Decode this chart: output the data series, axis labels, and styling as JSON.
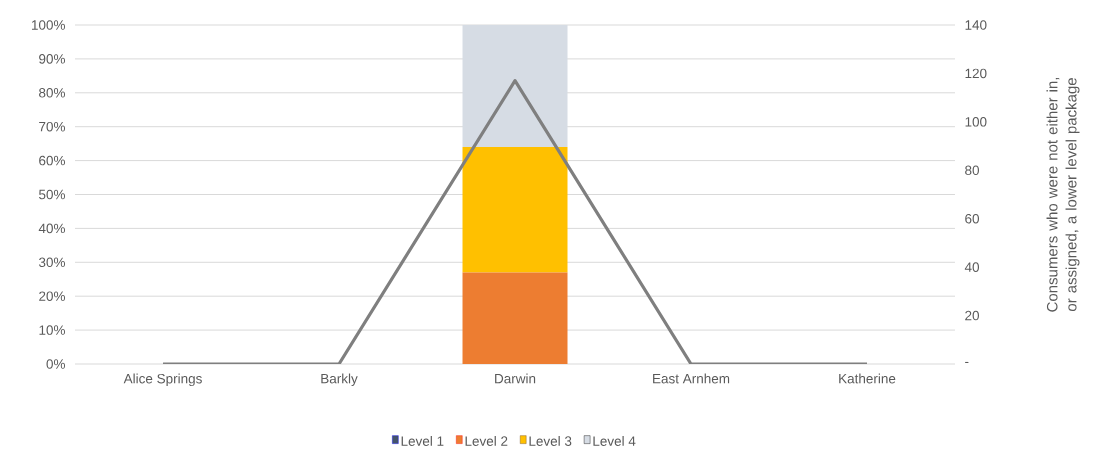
{
  "chart_data": {
    "type": "bar",
    "stacked": true,
    "categories": [
      "Alice Springs",
      "Barkly",
      "Darwin",
      "East Arnhem",
      "Katherine"
    ],
    "series": [
      {
        "name": "Level 1",
        "color": "#44546a",
        "values": [
          0,
          0,
          0,
          0,
          0
        ]
      },
      {
        "name": "Level 2",
        "color": "#ed7d31",
        "values": [
          0,
          0,
          27,
          0,
          0
        ]
      },
      {
        "name": "Level 3",
        "color": "#ffc000",
        "values": [
          0,
          0,
          37,
          0,
          0
        ]
      },
      {
        "name": "Level 4",
        "color": "#d6dce4",
        "values": [
          0,
          0,
          36,
          0,
          0
        ]
      },
      {
        "type": "line",
        "axis": "y2",
        "color": "#7f7f7f",
        "values": [
          0,
          0,
          117,
          0,
          0
        ]
      }
    ],
    "ylim": [
      0,
      100
    ],
    "yticks": [
      {
        "value": 0,
        "label": "0%"
      },
      {
        "value": 10,
        "label": "10%"
      },
      {
        "value": 20,
        "label": "20%"
      },
      {
        "value": 30,
        "label": "30%"
      },
      {
        "value": 40,
        "label": "40%"
      },
      {
        "value": 50,
        "label": "50%"
      },
      {
        "value": 60,
        "label": "60%"
      },
      {
        "value": 70,
        "label": "70%"
      },
      {
        "value": 80,
        "label": "80%"
      },
      {
        "value": 90,
        "label": "90%"
      },
      {
        "value": 100,
        "label": "100%"
      }
    ],
    "y2lim": [
      0,
      140
    ],
    "y2ticks": [
      {
        "value": 0,
        "label": "-"
      },
      20,
      40,
      60,
      80,
      100,
      120,
      140
    ],
    "y2label": "Consumers who were not either in, or assigned, a lower level package",
    "grid": "y",
    "legend": "bottom"
  }
}
